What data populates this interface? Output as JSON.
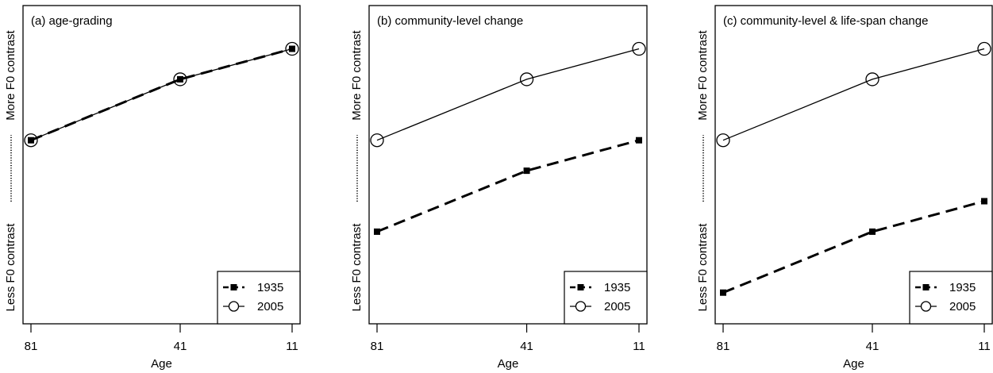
{
  "chart_data": [
    {
      "type": "line",
      "title": "(a) age-grading",
      "xlabel": "Age",
      "ylabel_low": "Less F0 contrast",
      "ylabel_high": "More F0 contrast",
      "x_ticks": [
        "81",
        "41",
        "11"
      ],
      "x": [
        81,
        41,
        11
      ],
      "ylim": [
        0,
        10
      ],
      "legend_position": "bottom-right",
      "series": [
        {
          "name": "1935",
          "style": "dashed-square",
          "values": [
            6.2,
            8.2,
            9.2
          ]
        },
        {
          "name": "2005",
          "style": "solid-circle",
          "values": [
            6.2,
            8.2,
            9.2
          ]
        }
      ]
    },
    {
      "type": "line",
      "title": "(b) community-level change",
      "xlabel": "Age",
      "ylabel_low": "Less F0 contrast",
      "ylabel_high": "More F0 contrast",
      "x_ticks": [
        "81",
        "41",
        "11"
      ],
      "x": [
        81,
        41,
        11
      ],
      "ylim": [
        0,
        10
      ],
      "legend_position": "bottom-right",
      "series": [
        {
          "name": "1935",
          "style": "dashed-square",
          "values": [
            3.2,
            5.2,
            6.2
          ]
        },
        {
          "name": "2005",
          "style": "solid-circle",
          "values": [
            6.2,
            8.2,
            9.2
          ]
        }
      ]
    },
    {
      "type": "line",
      "title": "(c) community-level & life-span change",
      "xlabel": "Age",
      "ylabel_low": "Less F0 contrast",
      "ylabel_high": "More F0 contrast",
      "x_ticks": [
        "81",
        "41",
        "11"
      ],
      "x": [
        81,
        41,
        11
      ],
      "ylim": [
        0,
        10
      ],
      "legend_position": "bottom-right",
      "series": [
        {
          "name": "1935",
          "style": "dashed-square",
          "values": [
            1.2,
            3.2,
            4.2
          ]
        },
        {
          "name": "2005",
          "style": "solid-circle",
          "values": [
            6.2,
            8.2,
            9.2
          ]
        }
      ]
    }
  ]
}
